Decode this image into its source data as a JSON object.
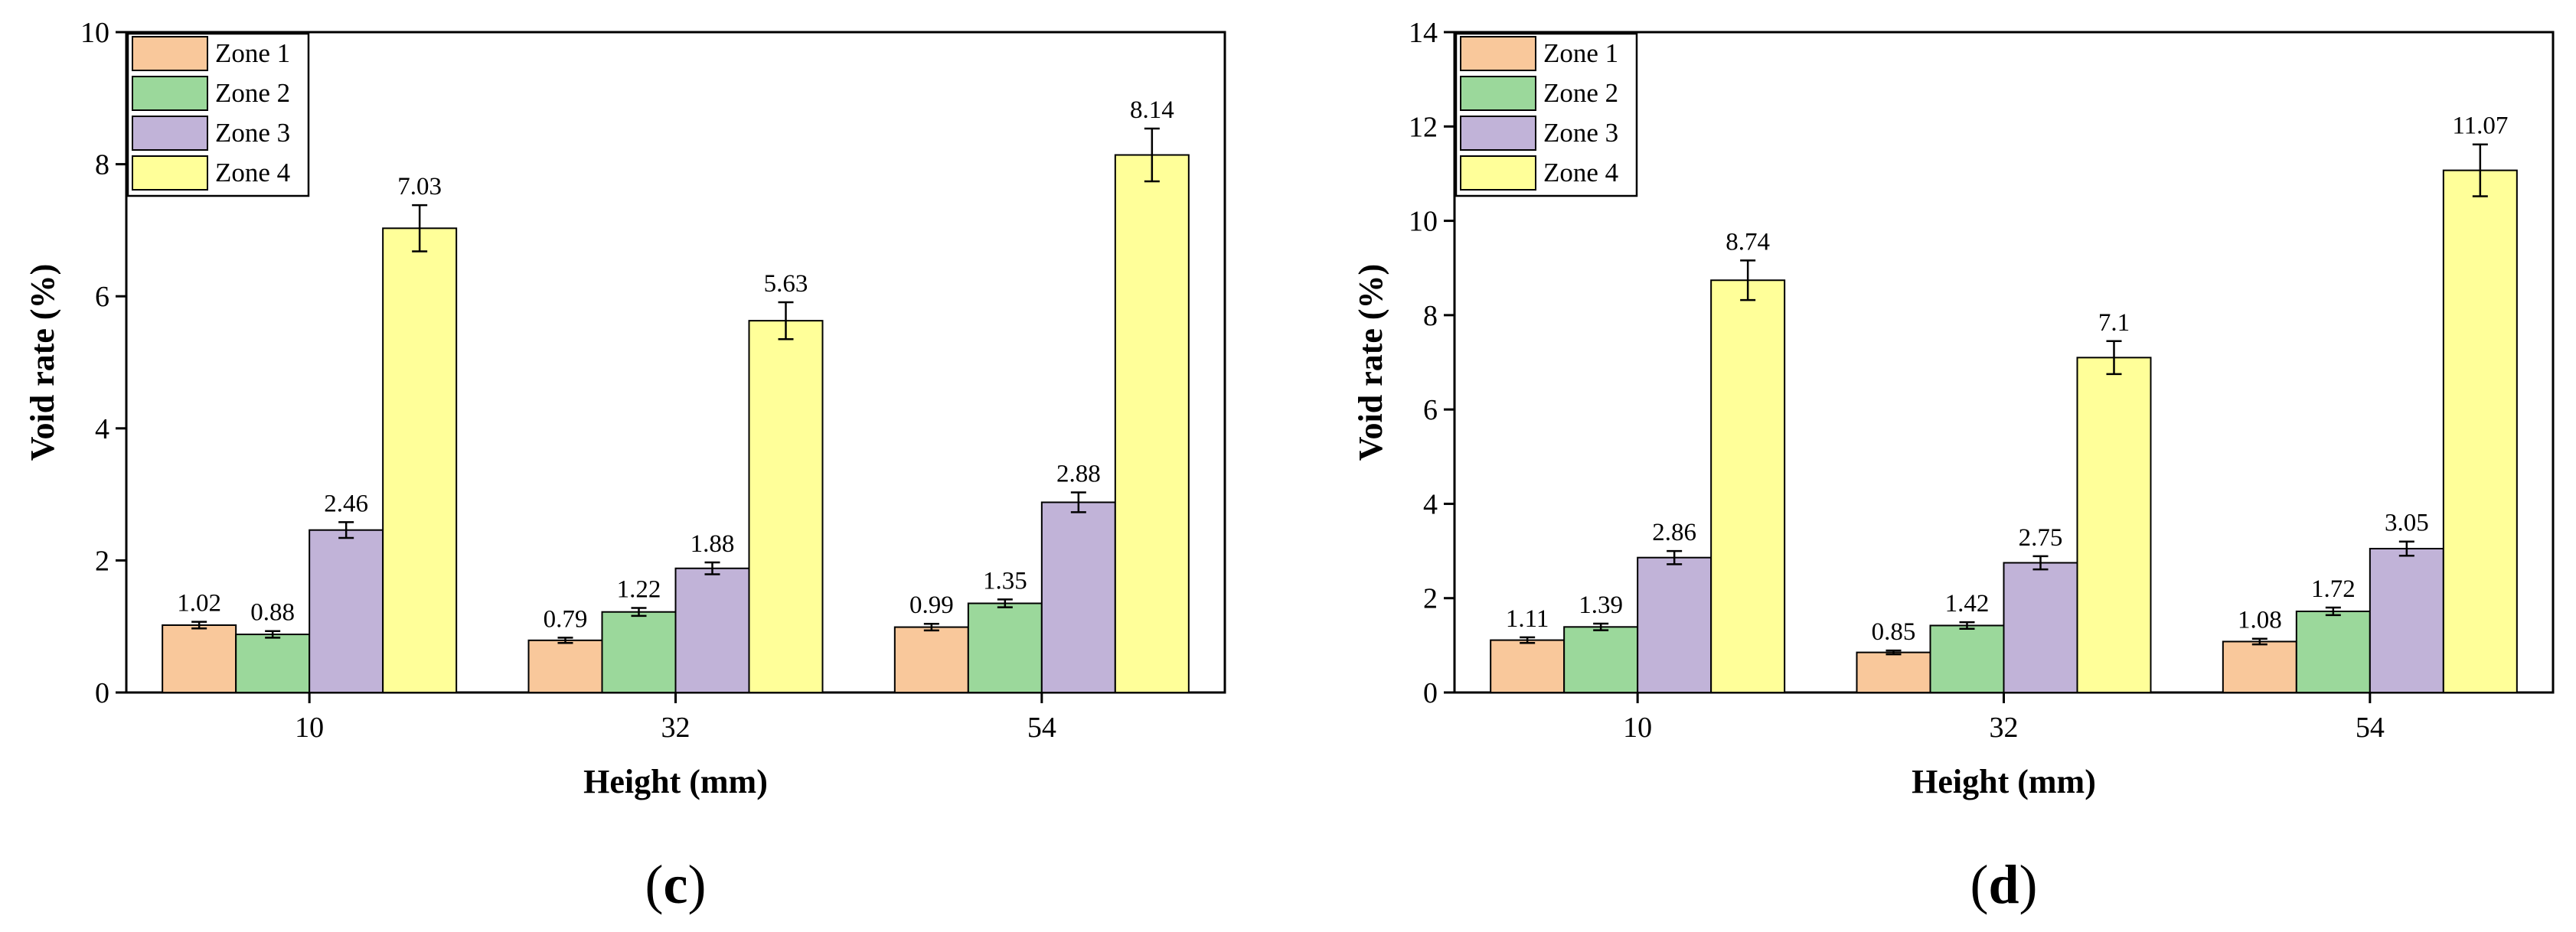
{
  "chart_data": [
    {
      "type": "bar",
      "panel_label": {
        "open": "(",
        "letter": "c",
        "close": ")"
      },
      "xlabel": "Height (mm)",
      "ylabel": "Void rate (%)",
      "categories": [
        "10",
        "32",
        "54"
      ],
      "ylim": [
        0,
        10
      ],
      "yticks": [
        "0",
        "2",
        "4",
        "6",
        "8",
        "10"
      ],
      "legend_position": "top-left",
      "series": [
        {
          "name": "Zone 1",
          "color": "#f9c89b",
          "values": [
            1.02,
            0.79,
            0.99
          ],
          "labels": [
            "1.02",
            "0.79",
            "0.99"
          ],
          "errors": [
            0.05,
            0.04,
            0.05
          ]
        },
        {
          "name": "Zone 2",
          "color": "#9bd89b",
          "values": [
            0.88,
            1.22,
            1.35
          ],
          "labels": [
            "0.88",
            "1.22",
            "1.35"
          ],
          "errors": [
            0.05,
            0.06,
            0.06
          ]
        },
        {
          "name": "Zone 3",
          "color": "#c1b3d8",
          "values": [
            2.46,
            1.88,
            2.88
          ],
          "labels": [
            "2.46",
            "1.88",
            "2.88"
          ],
          "errors": [
            0.12,
            0.09,
            0.15
          ]
        },
        {
          "name": "Zone 4",
          "color": "#ffff99",
          "values": [
            7.03,
            5.63,
            8.14
          ],
          "labels": [
            "7.03",
            "5.63",
            "8.14"
          ],
          "errors": [
            0.35,
            0.28,
            0.4
          ]
        }
      ]
    },
    {
      "type": "bar",
      "panel_label": {
        "open": "(",
        "letter": "d",
        "close": ")"
      },
      "xlabel": "Height (mm)",
      "ylabel": "Void rate (%)",
      "categories": [
        "10",
        "32",
        "54"
      ],
      "ylim": [
        0,
        14
      ],
      "yticks": [
        "0",
        "2",
        "4",
        "6",
        "8",
        "10",
        "12",
        "14"
      ],
      "legend_position": "top-left",
      "series": [
        {
          "name": "Zone 1",
          "color": "#f9c89b",
          "values": [
            1.11,
            0.85,
            1.08
          ],
          "labels": [
            "1.11",
            "0.85",
            "1.08"
          ],
          "errors": [
            0.06,
            0.04,
            0.06
          ]
        },
        {
          "name": "Zone 2",
          "color": "#9bd89b",
          "values": [
            1.39,
            1.42,
            1.72
          ],
          "labels": [
            "1.39",
            "1.42",
            "1.72"
          ],
          "errors": [
            0.07,
            0.07,
            0.08
          ]
        },
        {
          "name": "Zone 3",
          "color": "#c1b3d8",
          "values": [
            2.86,
            2.75,
            3.05
          ],
          "labels": [
            "2.86",
            "2.75",
            "3.05"
          ],
          "errors": [
            0.14,
            0.14,
            0.15
          ]
        },
        {
          "name": "Zone 4",
          "color": "#ffff99",
          "values": [
            8.74,
            7.1,
            11.07
          ],
          "labels": [
            "8.74",
            "7.1",
            "11.07"
          ],
          "errors": [
            0.42,
            0.35,
            0.55
          ]
        }
      ]
    }
  ]
}
